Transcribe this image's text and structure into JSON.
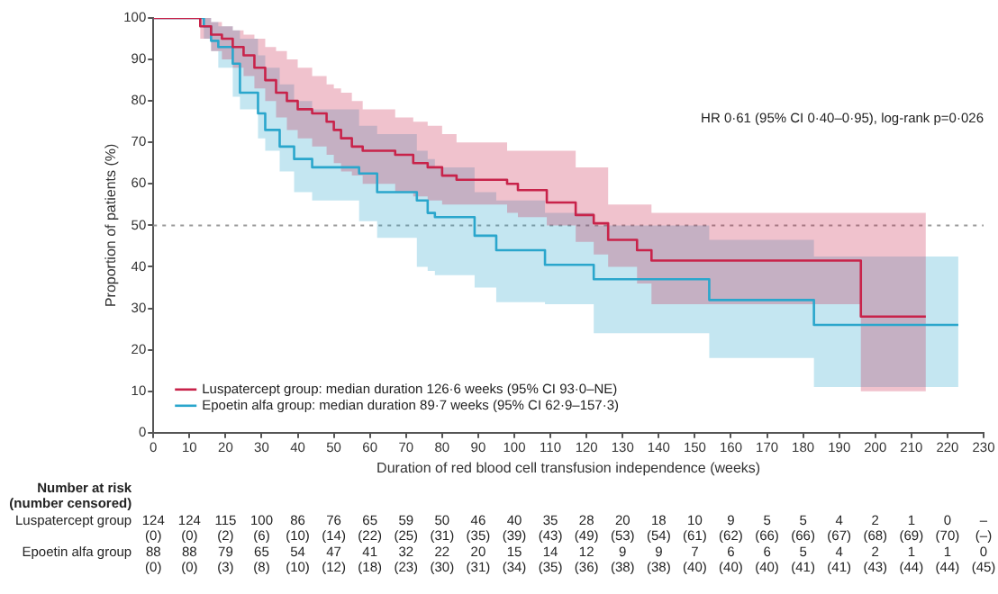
{
  "chart_data": {
    "type": "step",
    "xlabel": "Duration of red blood cell transfusion independence (weeks)",
    "ylabel": "Proportion of patients (%)",
    "xlim": [
      0,
      230
    ],
    "xticks": [
      0,
      10,
      20,
      30,
      40,
      50,
      60,
      70,
      80,
      90,
      100,
      110,
      120,
      130,
      140,
      150,
      160,
      170,
      180,
      190,
      200,
      210,
      220,
      230
    ],
    "ylim": [
      0,
      100
    ],
    "yticks": [
      0,
      10,
      20,
      30,
      40,
      50,
      60,
      70,
      80,
      90,
      100
    ],
    "legend": "bottom left",
    "grid": false,
    "series": [
      {
        "name": "Luspatercept group: median duration 126·6 weeks (95% CI 93·0–NE)",
        "color": "#c8234a",
        "x": [
          0,
          13,
          16,
          19,
          22,
          25,
          28,
          31,
          34,
          37,
          40,
          44,
          48,
          50,
          52,
          55,
          58,
          67,
          72,
          76,
          80,
          84,
          98,
          101,
          109,
          117,
          122,
          126,
          134,
          138,
          196,
          214
        ],
        "values": [
          100,
          98,
          96,
          95,
          93,
          91,
          88,
          85,
          82,
          80,
          78,
          77,
          75,
          73,
          71,
          69,
          68,
          67,
          65,
          64,
          62,
          61,
          60,
          58.5,
          55.5,
          52.5,
          50.5,
          46.5,
          44,
          41.5,
          28,
          28
        ],
        "upper": [
          100,
          100,
          99,
          98,
          97,
          96,
          95,
          93,
          92,
          90,
          88,
          86,
          84,
          83,
          82,
          80,
          78,
          76,
          75,
          74,
          72,
          70,
          68,
          68,
          68,
          64,
          64,
          55,
          55,
          53,
          53,
          53
        ],
        "lower": [
          100,
          95,
          92,
          90,
          88,
          86,
          83,
          80,
          76,
          73,
          71,
          69,
          67,
          65,
          63,
          62,
          60,
          58,
          57,
          56,
          55,
          55,
          53,
          52,
          50,
          46,
          43,
          40,
          36,
          31,
          10,
          10
        ]
      },
      {
        "name": "Epoetin alfa group: median duration 89·7 weeks (95% CI 62·9–157·3)",
        "color": "#2aa6cc",
        "x": [
          0,
          14,
          16,
          18,
          22,
          24,
          29,
          31,
          35,
          39,
          44,
          57,
          62,
          73,
          76,
          78,
          89,
          95,
          108.5,
          122,
          154,
          183,
          223
        ],
        "values": [
          100,
          98,
          94.5,
          93,
          89,
          82,
          77,
          73,
          69,
          66,
          64,
          62.5,
          58,
          56,
          53,
          52,
          47.5,
          44,
          40.5,
          37,
          32,
          26,
          26
        ],
        "upper": [
          100,
          100,
          99,
          98,
          97,
          95,
          91,
          88,
          84,
          80,
          78,
          74,
          72,
          68,
          66,
          64,
          58,
          56,
          53,
          50,
          46.5,
          42.5,
          42.5
        ],
        "lower": [
          100,
          95,
          92,
          88,
          81,
          78,
          71,
          68,
          63,
          58,
          56,
          51,
          47,
          40,
          39,
          38,
          35,
          31.5,
          31,
          24,
          18,
          11,
          11
        ]
      }
    ],
    "ref_lines": [
      {
        "axis": "y",
        "value": 50,
        "color": "#999999",
        "line_style": "dotted"
      }
    ],
    "annotations": [
      "HR 0·61 (95% CI 0·40–0·95), log-rank p=0·026",
      "Number at risk",
      "(number censored)",
      "Luspatercept group",
      "124 124 115 100 86 76 65 59 50 46 40 35 28 20 18 10 9 5 5 4 2 1 0 –",
      "(0) (0) (2) (6) (10) (14) (22) (25) (31) (35) (39) (43) (49) (53) (54) (61) (62) (66) (66) (67) (68) (69) (70) (–)",
      "Epoetin alfa group",
      "88 88 79 65 54 47 41 32 22 20 15 14 12 9 9 7 6 6 5 4 2 1 1 0",
      "(0) (0) (3) (8) (10) (12) (18) (23) (30) (31) (34) (35) (36) (38) (38) (40) (40) (40) (41) (41) (43) (44) (44) (45)"
    ]
  }
}
